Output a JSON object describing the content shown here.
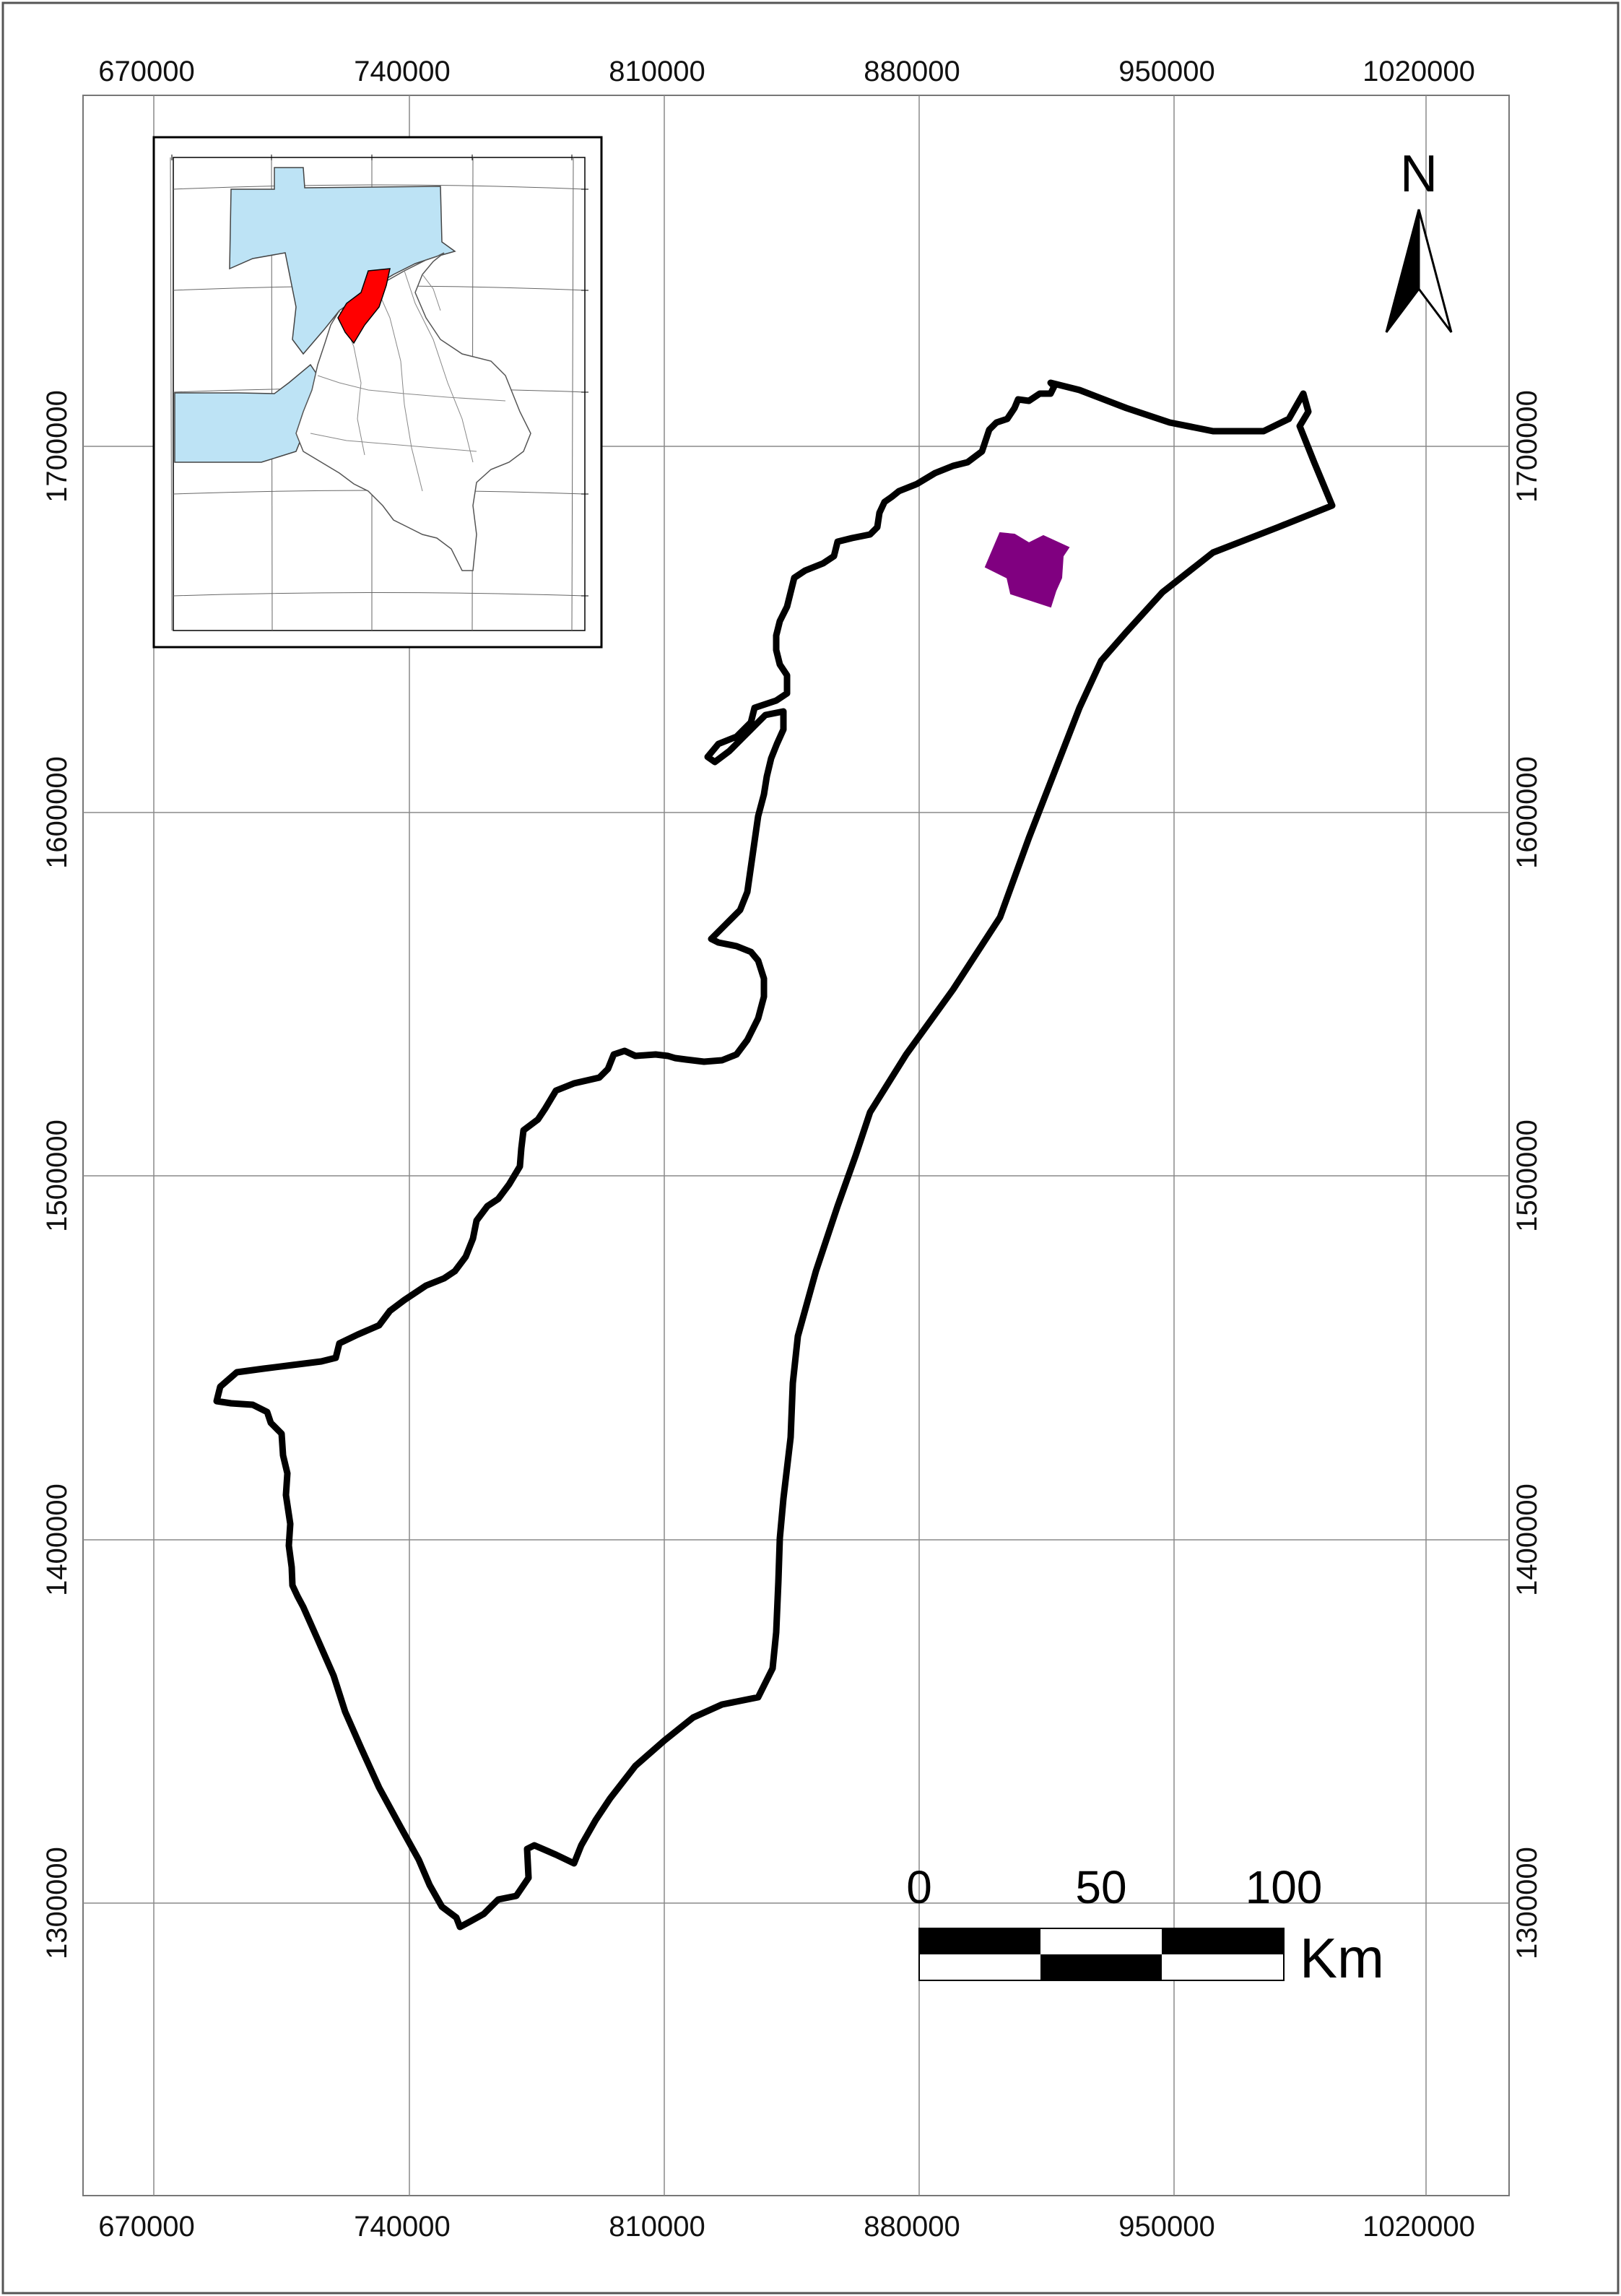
{
  "grid": {
    "eastings": [
      "670000",
      "740000",
      "810000",
      "880000",
      "950000",
      "1020000"
    ],
    "northings": [
      "1700000",
      "1600000",
      "1500000",
      "1400000",
      "1300000"
    ]
  },
  "north_arrow": {
    "label": "N"
  },
  "scale_bar": {
    "labels": [
      "0",
      "50",
      "100"
    ],
    "unit": "Km"
  },
  "colors": {
    "outline": "#000000",
    "study_area": "#800080",
    "inset_highlight": "#ff0000",
    "inset_water": "#bde3f5",
    "grid": "#888888"
  },
  "icons": {
    "north": "north-arrow-icon"
  }
}
